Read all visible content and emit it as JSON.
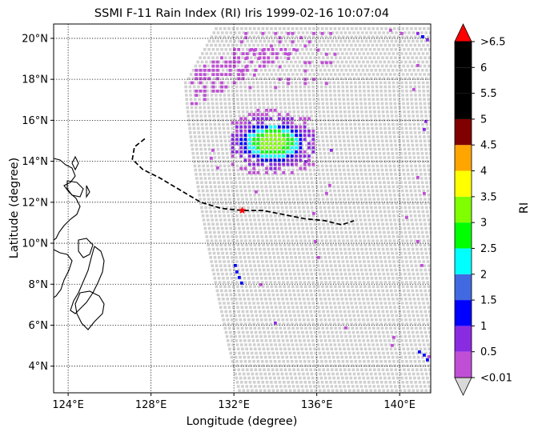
{
  "map": {
    "title": "SSMI F-11 Rain Index (RI) Iris 1999-02-16 10:07:04",
    "xlabel": "Longitude (degree)",
    "ylabel": "Latitude (degree)",
    "lon_range": [
      123.3,
      141.5
    ],
    "lat_range": [
      2.7,
      20.7
    ],
    "lon_ticks": [
      {
        "value": 124,
        "label": "124°E"
      },
      {
        "value": 128,
        "label": "128°E"
      },
      {
        "value": 132,
        "label": "132°E"
      },
      {
        "value": 136,
        "label": "136°E"
      },
      {
        "value": 140,
        "label": "140°E"
      }
    ],
    "lat_ticks": [
      {
        "value": 4,
        "label": "4°N"
      },
      {
        "value": 6,
        "label": "6°N"
      },
      {
        "value": 8,
        "label": "8°N"
      },
      {
        "value": 10,
        "label": "10°N"
      },
      {
        "value": 12,
        "label": "12°N"
      },
      {
        "value": 14,
        "label": "14°N"
      },
      {
        "value": 16,
        "label": "16°N"
      },
      {
        "value": 18,
        "label": "18°N"
      },
      {
        "value": 20,
        "label": "20°N"
      }
    ],
    "grid": "dotted",
    "swath_color": "#d0d0d0",
    "coastline_color": "#000000",
    "track": {
      "style": "dashed",
      "color": "#000000",
      "points": [
        [
          127.7,
          15.1
        ],
        [
          127.2,
          14.7
        ],
        [
          127.1,
          14.1
        ],
        [
          127.6,
          13.6
        ],
        [
          128.4,
          13.2
        ],
        [
          129.4,
          12.6
        ],
        [
          130.4,
          12.0
        ],
        [
          131.4,
          11.7
        ],
        [
          132.4,
          11.6
        ],
        [
          133.4,
          11.6
        ],
        [
          134.4,
          11.4
        ],
        [
          135.4,
          11.2
        ],
        [
          136.4,
          11.1
        ],
        [
          137.2,
          10.9
        ],
        [
          137.8,
          11.1
        ]
      ],
      "marker": {
        "lon": 132.4,
        "lat": 11.6,
        "symbol": "star",
        "color": "#ff0000"
      }
    }
  },
  "colorbar": {
    "label": "RI",
    "under_label": "<0.01",
    "over_label": ">6.5",
    "under_color": "#d9d9d9",
    "over_color": "#ff0000",
    "bins": [
      {
        "color": "#c04fd6",
        "label": "0.5"
      },
      {
        "color": "#8a2be2",
        "label": "1"
      },
      {
        "color": "#0000ff",
        "label": "1.5"
      },
      {
        "color": "#4169e1",
        "label": "2"
      },
      {
        "color": "#00ffff",
        "label": "2.5"
      },
      {
        "color": "#00ff00",
        "label": "3"
      },
      {
        "color": "#7fff00",
        "label": "3.5"
      },
      {
        "color": "#ffff00",
        "label": "4"
      },
      {
        "color": "#ffa500",
        "label": "4.5"
      },
      {
        "color": "#800000",
        "label": "5"
      },
      {
        "color": "#000000",
        "label": "5.5"
      },
      {
        "color": "#000000",
        "label": "6"
      },
      {
        "color": "#000000",
        "label": ">6.5"
      }
    ]
  }
}
